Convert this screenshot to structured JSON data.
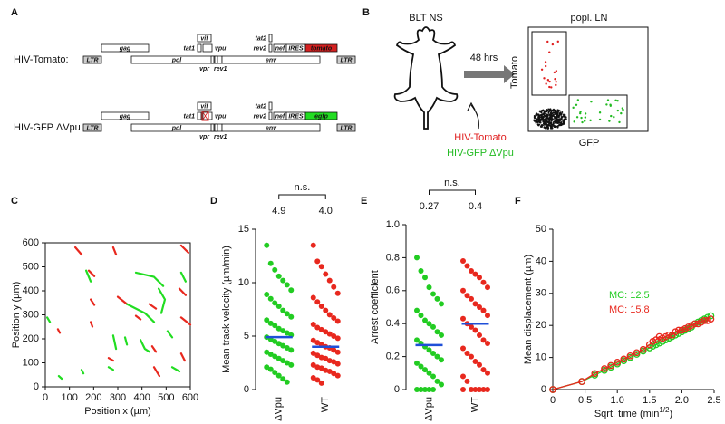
{
  "panel_labels": [
    "A",
    "B",
    "C",
    "D",
    "E",
    "F"
  ],
  "constructs": {
    "genes": [
      "gag",
      "pol",
      "vif",
      "tat1",
      "vpu",
      "vpr",
      "rev1",
      "env",
      "tat2",
      "rev2",
      "nef",
      "IRES",
      "LTR"
    ],
    "items": [
      {
        "name": "HIV-Tomato:",
        "reporter": "tomato",
        "reporter_color": "#d42020"
      },
      {
        "name": "HIV-GFP ΔVpu",
        "reporter": "egfp",
        "reporter_color": "#22dd22"
      }
    ]
  },
  "mouse_panel": {
    "title": "BLT NS",
    "arrow_label": "48 hrs",
    "plot_title": "popl. LN",
    "y_label": "Tomato",
    "x_label": "GFP",
    "legend": [
      {
        "text": "HIV-Tomato",
        "color": "#e02020"
      },
      {
        "text": "HIV-GFP ΔVpu",
        "color": "#22bb22"
      }
    ]
  },
  "chart_data": [
    {
      "type": "tracks",
      "x_label": "Position x (µm)",
      "y_label": "Position y (µm)",
      "xlim": [
        0,
        600
      ],
      "ylim": [
        0,
        600
      ],
      "xticks": [
        0,
        100,
        200,
        300,
        400,
        500,
        600
      ],
      "yticks": [
        0,
        100,
        200,
        300,
        400,
        500,
        600
      ],
      "series": [
        {
          "color": "#e8281e",
          "x": [
            124,
            150,
            null,
            281,
            293,
            null,
            562,
            592,
            null,
            180,
            203,
            null,
            188,
            203,
            null,
            300,
            338,
            null,
            431,
            458,
            null,
            555,
            581,
            null,
            562,
            600,
            null,
            188,
            195,
            null,
            442,
            458,
            null,
            262,
            281,
            null,
            450,
            472,
            null,
            562,
            577,
            null,
            52,
            60,
            null,
            375,
            394
          ],
          "values": [
            581,
            551,
            null,
            581,
            551,
            null,
            589,
            559,
            null,
            484,
            461,
            null,
            364,
            341,
            null,
            375,
            345,
            null,
            345,
            326,
            null,
            409,
            382,
            null,
            289,
            259,
            null,
            270,
            251,
            null,
            169,
            146,
            null,
            120,
            109,
            null,
            82,
            45,
            null,
            139,
            109,
            null,
            240,
            225,
            null,
            296,
            281
          ]
        },
        {
          "color": "#22dd22",
          "x": [
            375,
            450,
            488,
            null,
            469,
            495,
            480,
            null,
            338,
            412,
            450,
            null,
            394,
            412,
            431,
            null,
            169,
            188,
            null,
            281,
            293,
            null,
            330,
            338,
            null,
            8,
            19,
            null,
            56,
            68,
            null,
            150,
            158,
            null,
            262,
            281,
            null,
            525,
            555,
            null,
            562,
            581,
            null,
            506,
            525
          ],
          "values": [
            476,
            458,
            420,
            null,
            409,
            364,
            307,
            null,
            345,
            307,
            270,
            null,
            195,
            158,
            146,
            null,
            484,
            439,
            null,
            214,
            158,
            null,
            206,
            176,
            null,
            289,
            270,
            null,
            45,
            34,
            null,
            71,
            56,
            null,
            82,
            71,
            null,
            82,
            64,
            null,
            476,
            439,
            null,
            232,
            206
          ]
        }
      ]
    },
    {
      "type": "strip",
      "y_label": "Mean track velocity (µm/min)",
      "categories": [
        "ΔVpu",
        "WT"
      ],
      "ylim": [
        0,
        15
      ],
      "yticks": [
        0,
        5,
        10,
        15
      ],
      "series": [
        {
          "color": "#22cc22",
          "values": [
            13.5,
            11.8,
            11.2,
            10.6,
            10.2,
            9.8,
            9.3,
            8.9,
            8.5,
            8.1,
            7.8,
            7.4,
            7.1,
            6.8,
            6.5,
            6.2,
            6.0,
            5.7,
            5.5,
            5.3,
            5.1,
            4.9,
            4.7,
            4.5,
            4.3,
            4.1,
            3.9,
            3.7,
            3.5,
            3.3,
            3.1,
            2.9,
            2.7,
            2.5,
            2.3,
            2.1,
            1.9,
            1.6,
            1.3,
            1.0,
            0.7
          ]
        },
        {
          "color": "#e8281e",
          "values": [
            13.5,
            12.0,
            11.5,
            10.8,
            10.2,
            9.6,
            9.0,
            8.6,
            8.2,
            7.8,
            7.4,
            7.0,
            6.7,
            6.4,
            6.1,
            5.8,
            5.6,
            5.4,
            5.2,
            5.0,
            4.8,
            4.6,
            4.4,
            4.2,
            4.0,
            3.9,
            3.7,
            3.5,
            3.4,
            3.2,
            3.0,
            2.9,
            2.7,
            2.6,
            2.4,
            2.3,
            2.1,
            2.0,
            1.8,
            1.7,
            1.5,
            1.3,
            1.1,
            0.9,
            0.6
          ]
        }
      ],
      "means": {
        "color": "#1f4fd8",
        "values": [
          4.9,
          4.0
        ],
        "value_labels": [
          "4.9",
          "4.0"
        ]
      },
      "annotation": "n.s."
    },
    {
      "type": "strip",
      "y_label": "Arrest coefficient",
      "categories": [
        "ΔVpu",
        "WT"
      ],
      "ylim": [
        0,
        1
      ],
      "yticks": [
        0,
        0.2,
        0.4,
        0.6,
        0.8,
        {
          "value": 1,
          "label": "1.0"
        }
      ],
      "series": [
        {
          "color": "#22cc22",
          "values": [
            0.8,
            0.72,
            0.68,
            0.62,
            0.58,
            0.55,
            0.52,
            0.48,
            0.45,
            0.42,
            0.4,
            0.38,
            0.35,
            0.33,
            0.3,
            0.28,
            0.26,
            0.24,
            0.22,
            0.2,
            0.18,
            0.16,
            0.14,
            0.12,
            0.1,
            0.08,
            0.05,
            0.03,
            0,
            0,
            0,
            0,
            0
          ]
        },
        {
          "color": "#e8281e",
          "values": [
            0.78,
            0.75,
            0.72,
            0.7,
            0.68,
            0.65,
            0.62,
            0.6,
            0.57,
            0.55,
            0.52,
            0.5,
            0.48,
            0.45,
            0.43,
            0.4,
            0.38,
            0.36,
            0.33,
            0.3,
            0.28,
            0.25,
            0.22,
            0.2,
            0.17,
            0.15,
            0.12,
            0.1,
            0.08,
            0.05,
            0,
            0,
            0,
            0,
            0,
            0
          ]
        }
      ],
      "means": {
        "color": "#1f4fd8",
        "values": [
          0.27,
          0.4
        ]
      },
      "annotation": "n.s."
    },
    {
      "type": "line",
      "x_label": [
        "Sqrt. time (min",
        "1/2",
        ")"
      ],
      "y_label": "Mean displacement (µm)",
      "xlim": [
        0,
        2.5
      ],
      "xticks": [
        0,
        0.5,
        {
          "value": 1,
          "label": "1.0"
        },
        1.5,
        {
          "value": 2,
          "label": "2.0"
        },
        2.5
      ],
      "ylim": [
        0,
        50
      ],
      "yticks": [
        0,
        10,
        20,
        30,
        40,
        50
      ],
      "x": [
        0,
        0.45,
        0.65,
        0.8,
        0.9,
        1.0,
        1.1,
        1.2,
        1.3,
        1.4,
        1.5,
        1.55,
        1.6,
        1.65,
        1.7,
        1.75,
        1.8,
        1.85,
        1.9,
        1.95,
        2.0,
        2.05,
        2.1,
        2.15,
        2.2,
        2.25,
        2.3,
        2.35,
        2.4,
        2.45
      ],
      "series": [
        {
          "color": "#22cc22",
          "values": [
            0,
            2.5,
            4.5,
            6,
            7,
            8,
            9,
            10,
            11,
            12,
            13,
            13.5,
            14,
            14.5,
            15,
            15.5,
            16,
            16.5,
            17,
            17.5,
            18,
            18.5,
            19,
            19.5,
            20.5,
            21,
            21.5,
            22,
            22.5,
            23
          ]
        },
        {
          "color": "#e8281e",
          "values": [
            0,
            2.5,
            5,
            6.5,
            7.5,
            8.5,
            9.5,
            10.5,
            11.5,
            12.5,
            14,
            15,
            15.5,
            16.5,
            16,
            16.5,
            17,
            17,
            18,
            18.5,
            18.5,
            19,
            19.5,
            20,
            20.5,
            20.5,
            21,
            21.5,
            21.5,
            22
          ]
        }
      ],
      "annotations": [
        {
          "text": "MC: 12.5",
          "color": "#22cc22"
        },
        {
          "text": "MC: 15.8",
          "color": "#e8281e"
        }
      ]
    }
  ]
}
